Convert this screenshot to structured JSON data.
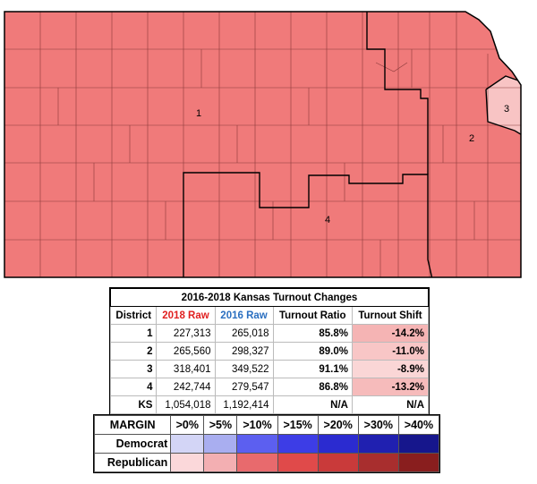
{
  "map": {
    "district_labels": [
      "1",
      "2",
      "3",
      "4"
    ]
  },
  "table": {
    "title": "2016-2018 Kansas Turnout Changes",
    "headers": [
      "District",
      "2018 Raw",
      "2016 Raw",
      "Turnout Ratio",
      "Turnout Shift"
    ],
    "rows": [
      [
        "1",
        "227,313",
        "265,018",
        "85.8%",
        "-14.2%"
      ],
      [
        "2",
        "265,560",
        "298,327",
        "89.0%",
        "-11.0%"
      ],
      [
        "3",
        "318,401",
        "349,522",
        "91.1%",
        "-8.9%"
      ],
      [
        "4",
        "242,744",
        "279,547",
        "86.8%",
        "-13.2%"
      ],
      [
        "KS",
        "1,054,018",
        "1,192,414",
        "N/A",
        "N/A"
      ]
    ]
  },
  "legend": {
    "header": [
      "MARGIN",
      ">0%",
      ">5%",
      ">10%",
      ">15%",
      ">20%",
      ">30%",
      ">40%"
    ],
    "rows": [
      {
        "name": "Democrat",
        "colors": [
          "#d3d5f6",
          "#a9aef0",
          "#5c5ff0",
          "#3d3de6",
          "#2b2bd0",
          "#2020b0",
          "#16168c"
        ]
      },
      {
        "name": "Republican",
        "colors": [
          "#fbd8da",
          "#f3afb2",
          "#e86a6d",
          "#e04a4a",
          "#c93a3a",
          "#a82e2e",
          "#891e1e"
        ]
      }
    ]
  }
}
